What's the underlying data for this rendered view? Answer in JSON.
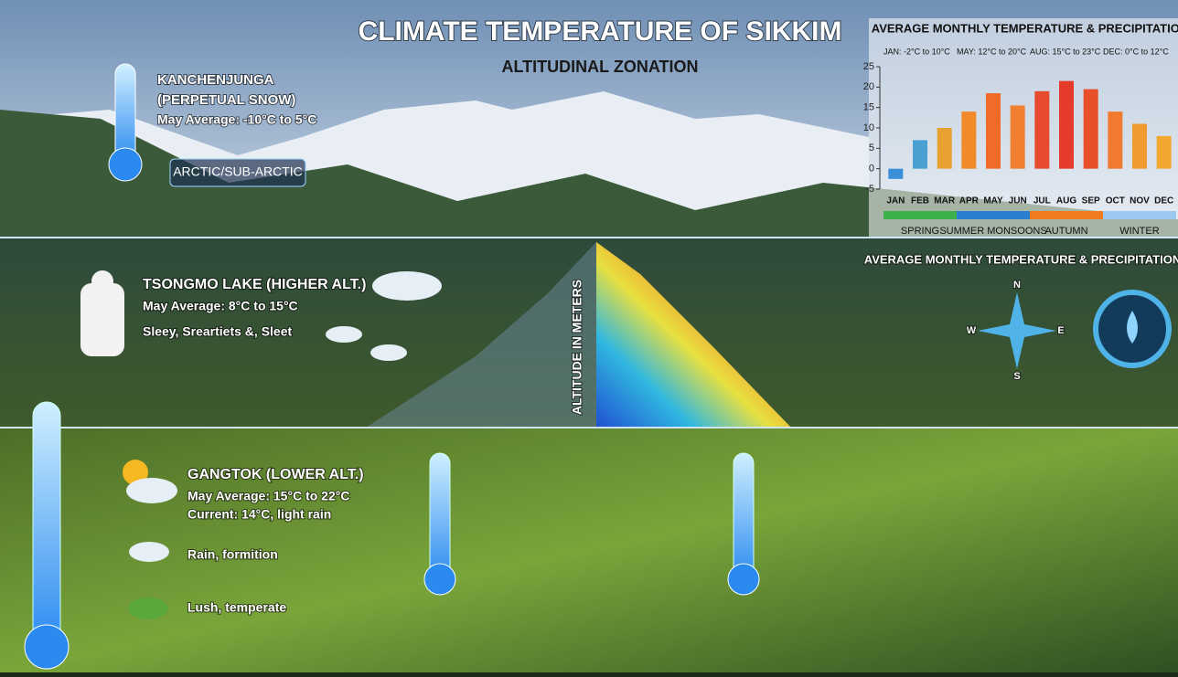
{
  "header": {
    "title": "CLIMATE TEMPERATURE OF SIKKIM",
    "subtitle": "ALTITUDINAL ZONATION"
  },
  "zones": [
    {
      "name": "KANCHENJUNGA",
      "note": "(PERPETUAL SNOW)",
      "average": "May Average: -10°C to 5°C",
      "badge": "ARCTIC/SUB-ARCTIC"
    },
    {
      "name": "TSONGMO LAKE (HIGHER ALT.)",
      "average": "May Average: 8°C to 15°C",
      "weather": "Sleey, Sreartiets &, Sleet"
    },
    {
      "name": "GANGTOK (LOWER ALT.)",
      "average": "May Average: 15°C to 22°C",
      "current": "Current: 14°C, light rain",
      "rain": "Rain, formition",
      "vegetation": "Lush, temperate"
    }
  ],
  "altitude_label": "ALTITUDE IN METERS",
  "compass": {
    "n": "N",
    "e": "E",
    "s": "S",
    "w": "W"
  },
  "chart_data": {
    "type": "bar",
    "title": "AVERAGE MONTHLY TEMPERATURE & PRECIPITATION",
    "subtitle": "AVERAGE MONTHLY TEMPERATURE & PRECIPITATION",
    "annotations": [
      "JAN: -2°C to 10°C",
      "MAY: 12°C to 20°C",
      "AUG: 15°C to 23°C",
      "DEC: 0°C to 12°C"
    ],
    "categories": [
      "JAN",
      "FEB",
      "MAR",
      "APR",
      "MAY",
      "JUN",
      "JUL",
      "AUG",
      "SEP",
      "OCT",
      "NOV",
      "DEC"
    ],
    "values": [
      -2.5,
      7,
      10,
      14,
      18.5,
      15.5,
      19,
      21.5,
      19.5,
      14,
      11,
      8
    ],
    "colors": [
      "#3a8fd8",
      "#4aa0d0",
      "#e8a030",
      "#f08a2a",
      "#f06a28",
      "#f08030",
      "#e84a30",
      "#e63a2a",
      "#e8502c",
      "#f07a30",
      "#f09a30",
      "#f0a830"
    ],
    "ylim": [
      -5,
      25
    ],
    "yticks": [
      -5,
      0,
      5,
      10,
      15,
      20,
      25
    ],
    "seasons": [
      {
        "name": "SPRING",
        "color": "#3cb04a"
      },
      {
        "name": "SUMMER MONSOONS",
        "color": "#2b7fd0"
      },
      {
        "name": "AUTUMN",
        "color": "#f07a20"
      },
      {
        "name": "WINTER",
        "color": "#9ac8ee"
      }
    ]
  }
}
